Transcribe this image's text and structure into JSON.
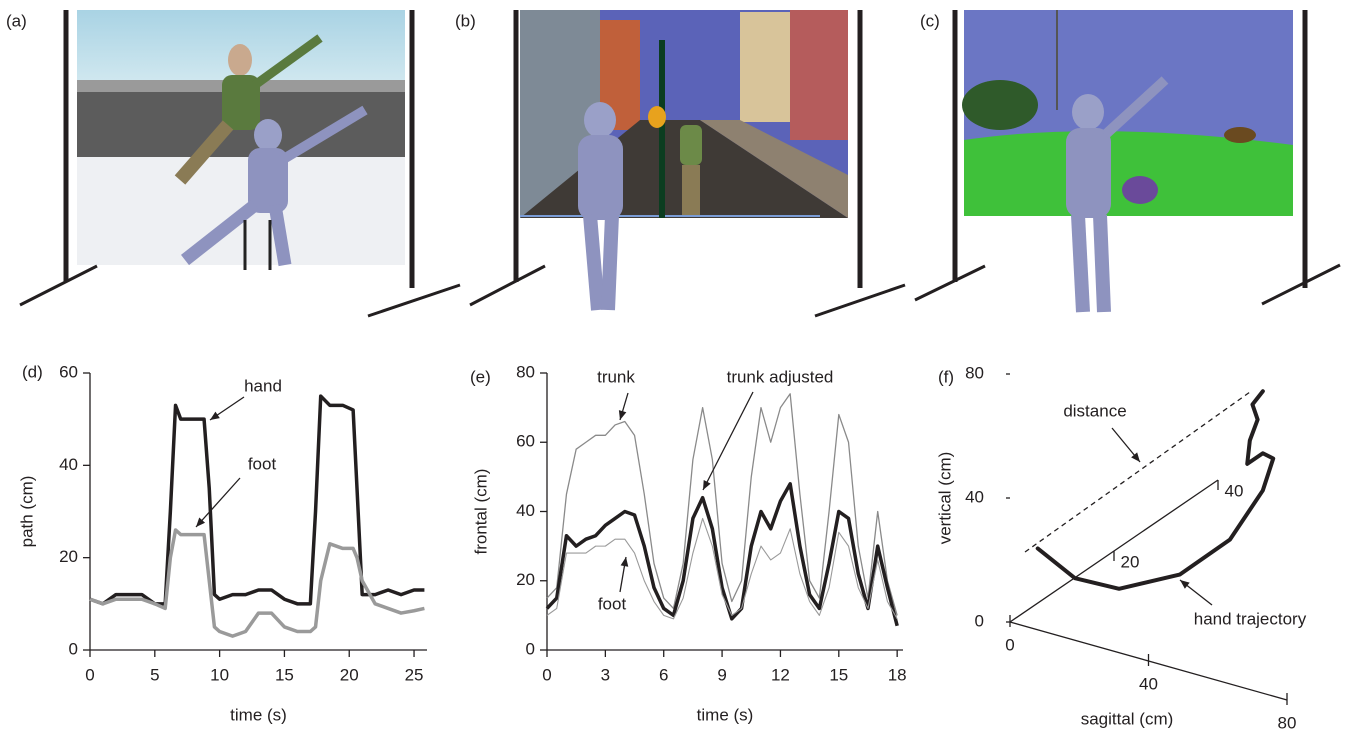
{
  "panels": [
    {
      "label": "(a)"
    },
    {
      "label": "(b)"
    },
    {
      "label": "(c)"
    }
  ],
  "chart_data": [
    {
      "type": "line",
      "label": "(d)",
      "xlabel": "time (s)",
      "ylabel": "path (cm)",
      "x": [
        0,
        1,
        2,
        3,
        4,
        5,
        5.8,
        6.2,
        6.6,
        7,
        8,
        8.8,
        9.2,
        9.6,
        10,
        11,
        12,
        13,
        14,
        15,
        16,
        17,
        17.4,
        17.8,
        18.5,
        19.5,
        20.3,
        20.6,
        21,
        22,
        23,
        24,
        25,
        25.8
      ],
      "xlim": [
        0,
        26
      ],
      "xticks": [
        0,
        5,
        10,
        15,
        20,
        25
      ],
      "ylim": [
        0,
        60
      ],
      "yticks": [
        0,
        20,
        40,
        60
      ],
      "series": [
        {
          "name": "hand",
          "color": "#231f20",
          "line_width": 3.5,
          "values": [
            11,
            10,
            12,
            12,
            12,
            10,
            10,
            30,
            53,
            50,
            50,
            50,
            35,
            12,
            11,
            12,
            12,
            13,
            13,
            11,
            10,
            10,
            30,
            55,
            53,
            53,
            52,
            35,
            12,
            12,
            13,
            12,
            13,
            13
          ]
        },
        {
          "name": "foot",
          "color": "#9a9a9a",
          "line_width": 3.5,
          "values": [
            11,
            10,
            11,
            11,
            11,
            10,
            9,
            20,
            26,
            25,
            25,
            25,
            15,
            5,
            4,
            3,
            4,
            8,
            8,
            5,
            4,
            4,
            5,
            15,
            23,
            22,
            22,
            20,
            15,
            10,
            9,
            8,
            8.5,
            9
          ]
        }
      ]
    },
    {
      "type": "line",
      "label": "(e)",
      "xlabel": "time (s)",
      "ylabel": "frontal (cm)",
      "x": [
        0,
        0.5,
        1,
        1.5,
        2,
        2.5,
        3,
        3.5,
        4,
        4.5,
        5,
        5.5,
        6,
        6.5,
        7,
        7.5,
        8,
        8.5,
        9,
        9.5,
        10,
        10.5,
        11,
        11.5,
        12,
        12.5,
        13,
        13.5,
        14,
        14.5,
        15,
        15.5,
        16,
        16.5,
        17,
        17.5,
        18
      ],
      "xlim": [
        0,
        18.3
      ],
      "xticks": [
        0,
        3,
        6,
        9,
        12,
        15,
        18
      ],
      "ylim": [
        0,
        80
      ],
      "yticks": [
        0,
        20,
        40,
        60,
        80
      ],
      "series": [
        {
          "name": "trunk",
          "color": "#8a8a8a",
          "line_width": 1.3,
          "values": [
            15,
            18,
            45,
            58,
            60,
            62,
            62,
            65,
            66,
            62,
            45,
            25,
            15,
            12,
            25,
            55,
            70,
            55,
            25,
            14,
            20,
            50,
            70,
            60,
            70,
            74,
            45,
            20,
            15,
            40,
            68,
            60,
            30,
            15,
            40,
            20,
            10
          ]
        },
        {
          "name": "trunk adjusted",
          "color": "#231f20",
          "line_width": 3.5,
          "values": [
            12,
            15,
            33,
            30,
            32,
            33,
            36,
            38,
            40,
            39,
            30,
            18,
            12,
            10,
            20,
            38,
            44,
            35,
            18,
            9,
            12,
            30,
            40,
            35,
            43,
            48,
            30,
            16,
            12,
            25,
            40,
            38,
            22,
            12,
            30,
            18,
            7
          ]
        },
        {
          "name": "foot",
          "color": "#9a9a9a",
          "line_width": 1.1,
          "values": [
            10,
            12,
            28,
            28,
            28,
            30,
            30,
            32,
            32,
            28,
            20,
            14,
            10,
            9,
            15,
            28,
            38,
            30,
            16,
            10,
            12,
            22,
            30,
            26,
            28,
            35,
            22,
            14,
            10,
            18,
            34,
            30,
            18,
            12,
            26,
            14,
            9
          ]
        }
      ]
    },
    {
      "type": "line3d",
      "label": "(f)",
      "xlabel": "sagittal (cm)",
      "ylabel": "vertical (cm)",
      "annotation": "distance",
      "sagittal_lim": [
        0,
        80
      ],
      "sagittal_ticks": [
        0,
        40,
        80
      ],
      "frontal_lim": [
        0,
        40
      ],
      "frontal_ticks": [
        20,
        40
      ],
      "vertical_lim": [
        0,
        80
      ],
      "vertical_ticks": [
        0,
        40,
        80
      ],
      "series": [
        {
          "name": "hand trajectory",
          "color": "#231f20",
          "line_width": 4,
          "sagittal": [
            5,
            15,
            30,
            40,
            50,
            55,
            55,
            55,
            55,
            55,
            55,
            55,
            55
          ],
          "frontal": [
            2,
            2.5,
            1,
            6,
            9,
            12,
            14,
            12,
            9,
            9.5,
            11,
            10,
            12
          ],
          "vertical": [
            23,
            16,
            19,
            21,
            32,
            46,
            54,
            58,
            58,
            65,
            70,
            76,
            78
          ]
        }
      ]
    }
  ]
}
